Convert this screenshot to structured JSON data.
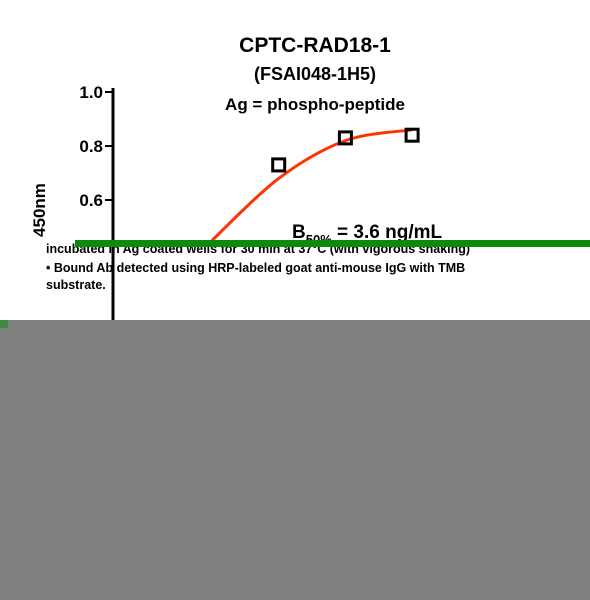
{
  "chart_data": {
    "type": "line",
    "title": "CPTC-RAD18-1",
    "subtitle": "(FSAI048-1H5)",
    "annotation": "Ag = phospho-peptide",
    "y_label": "450nm",
    "ec50": {
      "symbol": "B",
      "subscript": "50%",
      "text": " = 3.6 ng/mL"
    },
    "categories": [
      null,
      null,
      null,
      null
    ],
    "series": [
      {
        "color": "#ff3300",
        "values": [
          0.45,
          0.68,
          0.82,
          0.86
        ],
        "smooth": true,
        "marker": false
      },
      {
        "color": "#000000",
        "values": [
          null,
          0.73,
          0.83,
          0.84
        ],
        "marker": "square",
        "line": false
      }
    ],
    "ylim": [
      0,
      1.0
    ],
    "yticks": [
      {
        "value": 1.0,
        "label": "1.0"
      },
      0.8,
      0.6
    ]
  },
  "notes": [
    "incubated in Ag coated wells for 30 min at 37°C (with vigorous shaking)",
    "• Bound Ab detected using HRP-labeled goat anti-mouse IgG with TMB",
    "substrate."
  ]
}
